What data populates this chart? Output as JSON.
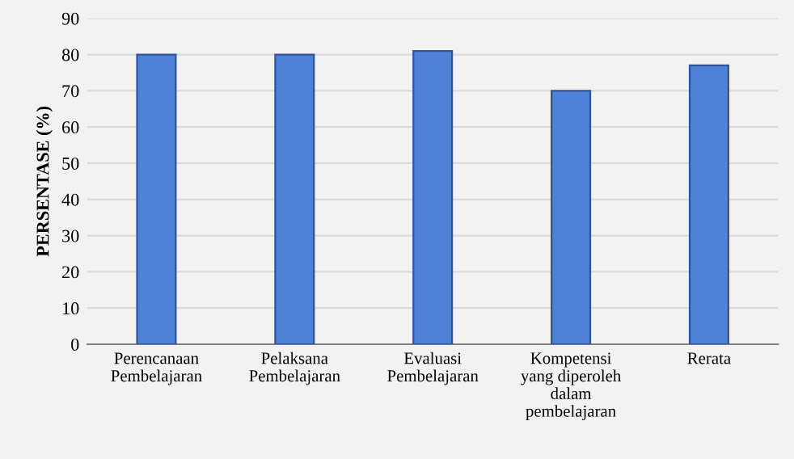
{
  "chart_data": {
    "type": "bar",
    "ylabel": "PERSENTASE (%)",
    "categories": [
      "Perencanaan\nPembelajaran",
      "Pelaksana\nPembelajaran",
      "Evaluasi\nPembelajaran",
      "Kompetensi\nyang diperoleh\ndalam\npembelajaran",
      "Rerata"
    ],
    "values": [
      80,
      80,
      81,
      70,
      77
    ],
    "color": "#4f81d9",
    "ylim": [
      0,
      90
    ],
    "yticks": [
      0,
      10,
      20,
      30,
      40,
      50,
      60,
      70,
      80,
      90
    ],
    "grid": "y"
  }
}
